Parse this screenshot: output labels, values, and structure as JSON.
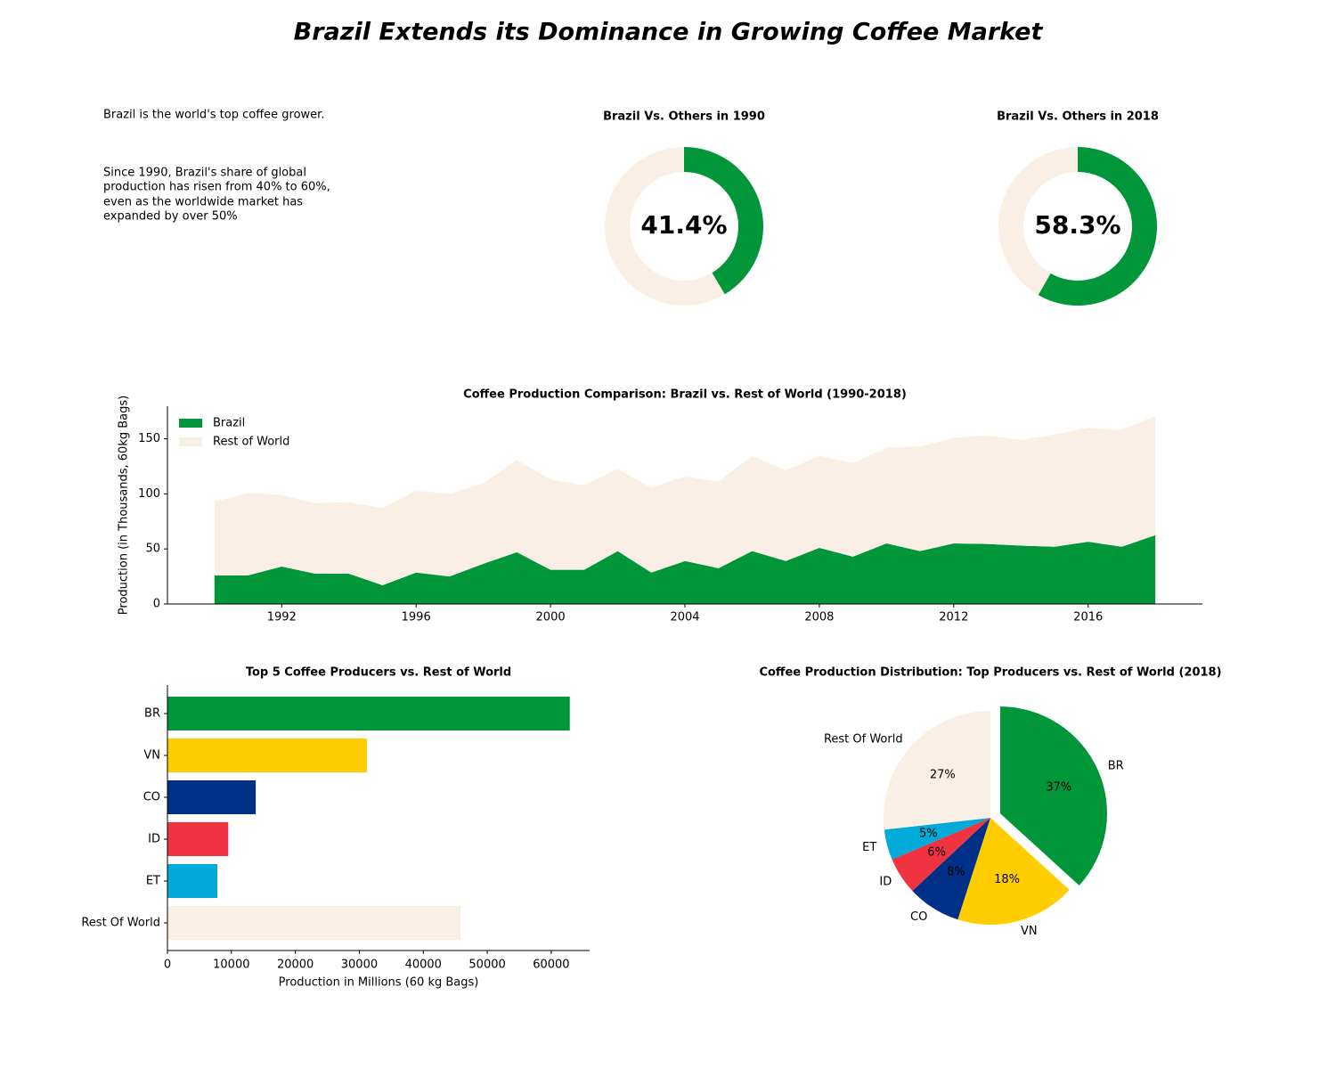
{
  "header": {
    "title": "Brazil Extends its Dominance in Growing Coffee Market"
  },
  "intro": "Brazil is the world's top coffee grower.",
  "summary_lines": [
    "Since 1990, Brazil's share of global",
    "production has risen from 40% to 60%,",
    "even as the worldwide market has",
    "expanded by over 50%"
  ],
  "chart_data": [
    {
      "type": "donut",
      "title": "Brazil Vs. Others in 1990",
      "values": [
        41.4,
        58.6
      ],
      "center_label": "41.4%",
      "colors": [
        "#009639",
        "#f9efe5"
      ]
    },
    {
      "type": "donut",
      "title": "Brazil Vs. Others in 2018",
      "values": [
        58.3,
        41.7
      ],
      "center_label": "58.3%",
      "colors": [
        "#009639",
        "#f9efe5"
      ]
    },
    {
      "type": "stacked_area",
      "title": "Coffee Production Comparison: Brazil vs. Rest of World (1990-2018)",
      "ylabel": "Production (in Thousands, 60kg Bags)",
      "x": [
        1990,
        1991,
        1992,
        1993,
        1994,
        1995,
        1996,
        1997,
        1998,
        1999,
        2000,
        2001,
        2002,
        2003,
        2004,
        2005,
        2006,
        2007,
        2008,
        2009,
        2010,
        2011,
        2012,
        2013,
        2014,
        2015,
        2016,
        2017,
        2018
      ],
      "series": [
        {
          "name": "Brazil",
          "color": "#009639",
          "values": [
            26,
            26,
            34,
            27.5,
            27.5,
            17,
            28.5,
            25,
            36.5,
            47,
            31,
            31,
            48,
            28.5,
            39,
            32.5,
            48,
            39,
            51,
            43,
            55,
            48,
            55,
            54.5,
            53,
            52,
            56.5,
            52,
            62.5
          ]
        },
        {
          "name": "Rest of World",
          "color": "#f9efe5",
          "values": [
            67,
            75,
            65,
            64,
            65,
            70,
            74.5,
            75,
            73,
            84,
            82,
            77,
            74.5,
            77,
            77,
            78.5,
            86.5,
            82.5,
            83.5,
            85,
            87,
            95,
            96,
            98.5,
            96,
            102,
            103.5,
            106,
            108.5
          ]
        }
      ],
      "xlim": [
        1988.6,
        2019.4
      ],
      "ylim": [
        0,
        179.6
      ],
      "xticks": [
        1992,
        1996,
        2000,
        2004,
        2008,
        2012,
        2016
      ],
      "yticks": [
        0,
        50,
        100,
        150
      ],
      "legend": "upper left"
    },
    {
      "type": "barh",
      "title": "Top 5 Coffee Producers vs. Rest of World",
      "xlabel": "Production in Millions (60 kg Bags)",
      "categories": [
        "BR",
        "VN",
        "CO",
        "ID",
        "ET",
        "Rest Of World"
      ],
      "values": [
        62900,
        31200,
        13800,
        9500,
        7800,
        45800
      ],
      "colors": [
        "#009639",
        "#ffcd00",
        "#003087",
        "#ef3340",
        "#00abd9",
        "#f9efe5"
      ],
      "xlim": [
        0,
        66000
      ],
      "xticks": [
        0,
        10000,
        20000,
        30000,
        40000,
        50000,
        60000
      ]
    },
    {
      "type": "pie",
      "title": "Coffee Production Distribution: Top Producers vs. Rest of World (2018)",
      "categories": [
        "BR",
        "VN",
        "CO",
        "ID",
        "ET",
        "Rest Of World"
      ],
      "values": [
        36.8,
        18.2,
        8.1,
        5.6,
        4.6,
        26.8
      ],
      "value_labels": [
        "37%",
        "18%",
        "8%",
        "6%",
        "5%",
        "27%"
      ],
      "colors": [
        "#009639",
        "#ffcd00",
        "#003087",
        "#ef3340",
        "#00abd9",
        "#f9efe5"
      ],
      "explode": [
        0.1,
        0,
        0,
        0,
        0,
        0
      ]
    }
  ]
}
